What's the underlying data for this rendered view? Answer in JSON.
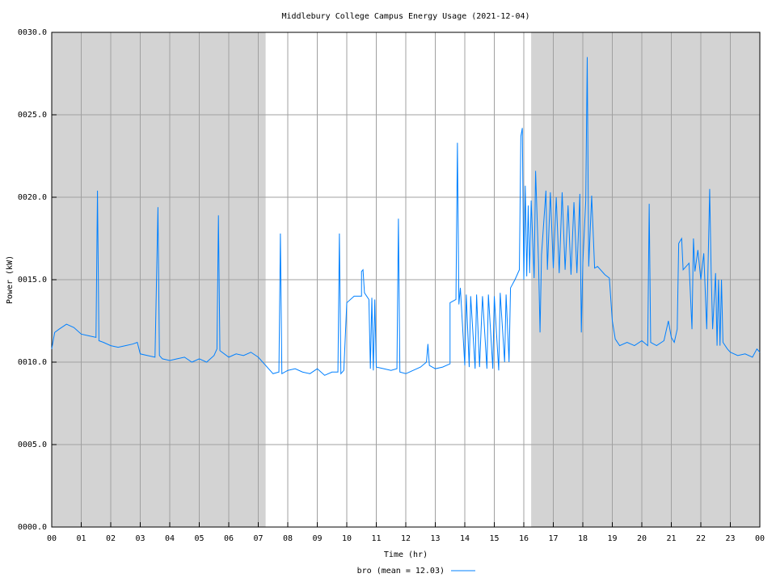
{
  "chart_data": {
    "type": "line",
    "title": "Middlebury College Campus Energy Usage (2021-12-04)",
    "xlabel": "Time (hr)",
    "ylabel": "Power (kW)",
    "xlim": [
      0,
      24
    ],
    "ylim": [
      0,
      30
    ],
    "xticks": [
      {
        "value": 0,
        "label": "00"
      },
      {
        "value": 1,
        "label": "01"
      },
      {
        "value": 2,
        "label": "02"
      },
      {
        "value": 3,
        "label": "03"
      },
      {
        "value": 4,
        "label": "04"
      },
      {
        "value": 5,
        "label": "05"
      },
      {
        "value": 6,
        "label": "06"
      },
      {
        "value": 7,
        "label": "07"
      },
      {
        "value": 8,
        "label": "08"
      },
      {
        "value": 9,
        "label": "09"
      },
      {
        "value": 10,
        "label": "10"
      },
      {
        "value": 11,
        "label": "11"
      },
      {
        "value": 12,
        "label": "12"
      },
      {
        "value": 13,
        "label": "13"
      },
      {
        "value": 14,
        "label": "14"
      },
      {
        "value": 15,
        "label": "15"
      },
      {
        "value": 16,
        "label": "16"
      },
      {
        "value": 17,
        "label": "17"
      },
      {
        "value": 18,
        "label": "18"
      },
      {
        "value": 19,
        "label": "19"
      },
      {
        "value": 20,
        "label": "20"
      },
      {
        "value": 21,
        "label": "21"
      },
      {
        "value": 22,
        "label": "22"
      },
      {
        "value": 23,
        "label": "23"
      },
      {
        "value": 24,
        "label": "00"
      }
    ],
    "yticks": [
      {
        "value": 0,
        "label": "0000.0"
      },
      {
        "value": 5,
        "label": "0005.0"
      },
      {
        "value": 10,
        "label": "0010.0"
      },
      {
        "value": 15,
        "label": "0015.0"
      },
      {
        "value": 20,
        "label": "0020.0"
      },
      {
        "value": 25,
        "label": "0025.0"
      },
      {
        "value": 30,
        "label": "0030.0"
      }
    ],
    "grid": true,
    "shaded_ranges": [
      [
        0,
        7.25
      ],
      [
        16.25,
        24
      ]
    ],
    "shade_color": "#d3d3d3",
    "legend": "bottom",
    "x": [
      0,
      0.1,
      0.25,
      0.5,
      0.75,
      1.0,
      1.25,
      1.5,
      1.55,
      1.6,
      1.75,
      2.0,
      2.25,
      2.5,
      2.75,
      2.9,
      3.0,
      3.25,
      3.5,
      3.6,
      3.65,
      3.75,
      4.0,
      4.25,
      4.5,
      4.75,
      5.0,
      5.25,
      5.5,
      5.6,
      5.65,
      5.7,
      6.0,
      6.25,
      6.5,
      6.75,
      7.0,
      7.25,
      7.5,
      7.7,
      7.75,
      7.8,
      8.0,
      8.25,
      8.5,
      8.75,
      9.0,
      9.25,
      9.5,
      9.7,
      9.75,
      9.8,
      9.9,
      10.0,
      10.25,
      10.5,
      10.5,
      10.55,
      10.6,
      10.75,
      10.8,
      10.85,
      10.9,
      10.95,
      11.0,
      11.25,
      11.5,
      11.7,
      11.75,
      11.8,
      12.0,
      12.25,
      12.5,
      12.7,
      12.75,
      12.8,
      13.0,
      13.25,
      13.5,
      13.5,
      13.7,
      13.75,
      13.8,
      13.85,
      14.0,
      14.05,
      14.15,
      14.2,
      14.35,
      14.4,
      14.5,
      14.6,
      14.75,
      14.8,
      14.95,
      15.0,
      15.15,
      15.2,
      15.35,
      15.4,
      15.5,
      15.55,
      15.7,
      15.85,
      15.9,
      15.95,
      16.0,
      16.05,
      16.1,
      16.15,
      16.2,
      16.25,
      16.35,
      16.4,
      16.5,
      16.55,
      16.6,
      16.75,
      16.8,
      16.9,
      17.0,
      17.1,
      17.2,
      17.3,
      17.4,
      17.5,
      17.6,
      17.7,
      17.8,
      17.9,
      17.95,
      18.0,
      18.1,
      18.15,
      18.2,
      18.3,
      18.4,
      18.5,
      18.75,
      18.9,
      19.0,
      19.1,
      19.25,
      19.5,
      19.75,
      20.0,
      20.2,
      20.25,
      20.3,
      20.5,
      20.75,
      20.9,
      21.0,
      21.1,
      21.2,
      21.25,
      21.35,
      21.4,
      21.5,
      21.6,
      21.7,
      21.75,
      21.8,
      21.9,
      22.0,
      22.1,
      22.2,
      22.3,
      22.35,
      22.4,
      22.5,
      22.55,
      22.6,
      22.65,
      22.7,
      22.75,
      22.9,
      23.0,
      23.25,
      23.5,
      23.75,
      23.9,
      24.0
    ],
    "series": [
      {
        "name": "bro (mean = 12.03)",
        "color": "#0080ff",
        "values": [
          10.8,
          11.8,
          12.0,
          12.3,
          12.1,
          11.7,
          11.6,
          11.5,
          20.4,
          11.3,
          11.2,
          11.0,
          10.9,
          11.0,
          11.1,
          11.2,
          10.5,
          10.4,
          10.3,
          19.4,
          10.4,
          10.2,
          10.1,
          10.2,
          10.3,
          10.0,
          10.2,
          10.0,
          10.4,
          10.8,
          18.9,
          10.7,
          10.3,
          10.5,
          10.4,
          10.6,
          10.3,
          9.8,
          9.3,
          9.4,
          17.8,
          9.3,
          9.5,
          9.6,
          9.4,
          9.3,
          9.6,
          9.2,
          9.4,
          9.4,
          17.8,
          9.3,
          9.5,
          13.6,
          14.0,
          14.0,
          15.5,
          15.6,
          14.2,
          13.8,
          9.6,
          13.9,
          9.5,
          13.8,
          9.7,
          9.6,
          9.5,
          9.6,
          18.7,
          9.4,
          9.3,
          9.5,
          9.7,
          10.0,
          11.1,
          9.8,
          9.6,
          9.7,
          9.9,
          13.6,
          13.8,
          23.3,
          13.5,
          14.5,
          9.8,
          14.1,
          9.7,
          14.0,
          9.6,
          14.1,
          9.7,
          14.0,
          9.6,
          14.1,
          9.6,
          14.0,
          9.5,
          14.2,
          10.0,
          14.1,
          10.0,
          14.5,
          15.0,
          15.6,
          23.7,
          24.2,
          15.0,
          20.7,
          15.2,
          19.5,
          15.4,
          19.8,
          15.1,
          21.6,
          16.0,
          11.8,
          16.5,
          20.4,
          15.6,
          20.3,
          15.7,
          20.0,
          15.4,
          20.3,
          15.6,
          19.5,
          15.3,
          19.7,
          15.4,
          20.2,
          11.8,
          16.0,
          19.8,
          28.5,
          15.8,
          20.1,
          15.7,
          15.8,
          15.3,
          15.1,
          12.5,
          11.4,
          11.0,
          11.2,
          11.0,
          11.3,
          11.0,
          19.6,
          11.2,
          11.0,
          11.3,
          12.5,
          11.5,
          11.2,
          12.0,
          17.2,
          17.5,
          15.6,
          15.8,
          16.0,
          12.0,
          17.5,
          15.5,
          16.8,
          15.0,
          16.6,
          12.0,
          20.5,
          15.5,
          12.0,
          15.4,
          11.0,
          15.0,
          11.0,
          15.0,
          11.2,
          10.8,
          10.6,
          10.4,
          10.5,
          10.3,
          10.8,
          10.6
        ]
      }
    ]
  }
}
